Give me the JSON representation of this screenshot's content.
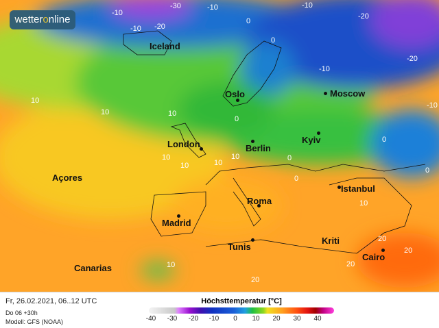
{
  "logo": {
    "text_a": "wetter",
    "text_b": "o",
    "text_c": "nline"
  },
  "cities": [
    {
      "name": "Iceland"
    },
    {
      "name": "Oslo"
    },
    {
      "name": "Moscow"
    },
    {
      "name": "London"
    },
    {
      "name": "Berlin"
    },
    {
      "name": "Kyiv"
    },
    {
      "name": "Açores"
    },
    {
      "name": "Istanbul"
    },
    {
      "name": "Roma"
    },
    {
      "name": "Madrid"
    },
    {
      "name": "Tunis"
    },
    {
      "name": "Kriti"
    },
    {
      "name": "Canarias"
    },
    {
      "name": "Cairo"
    }
  ],
  "isolines": [
    "-10",
    "-30",
    "-10",
    "-20",
    "-10",
    "0",
    "-10",
    "-20",
    "0",
    "-20",
    "-10",
    "-10",
    "10",
    "10",
    "10",
    "0",
    "10",
    "10",
    "10",
    "0",
    "0",
    "10",
    "0",
    "10",
    "20",
    "20",
    "20",
    "10",
    "20",
    "0"
  ],
  "footer": {
    "date": "Fr, 26.02.2021, 06..12 UTC",
    "run": "Do 06 +30h",
    "model": "Modell: GFS (NOAA)",
    "legend_title": "Höchsttemperatur [°C]",
    "ticks": [
      "-40",
      "-30",
      "-20",
      "-10",
      "0",
      "10",
      "20",
      "30",
      "40"
    ]
  },
  "colors": {
    "warm": "#ffa020",
    "mild": "#f8d020",
    "cool": "#40c030",
    "cold": "#1a60d8",
    "logo_bg": "#2c5b78"
  }
}
